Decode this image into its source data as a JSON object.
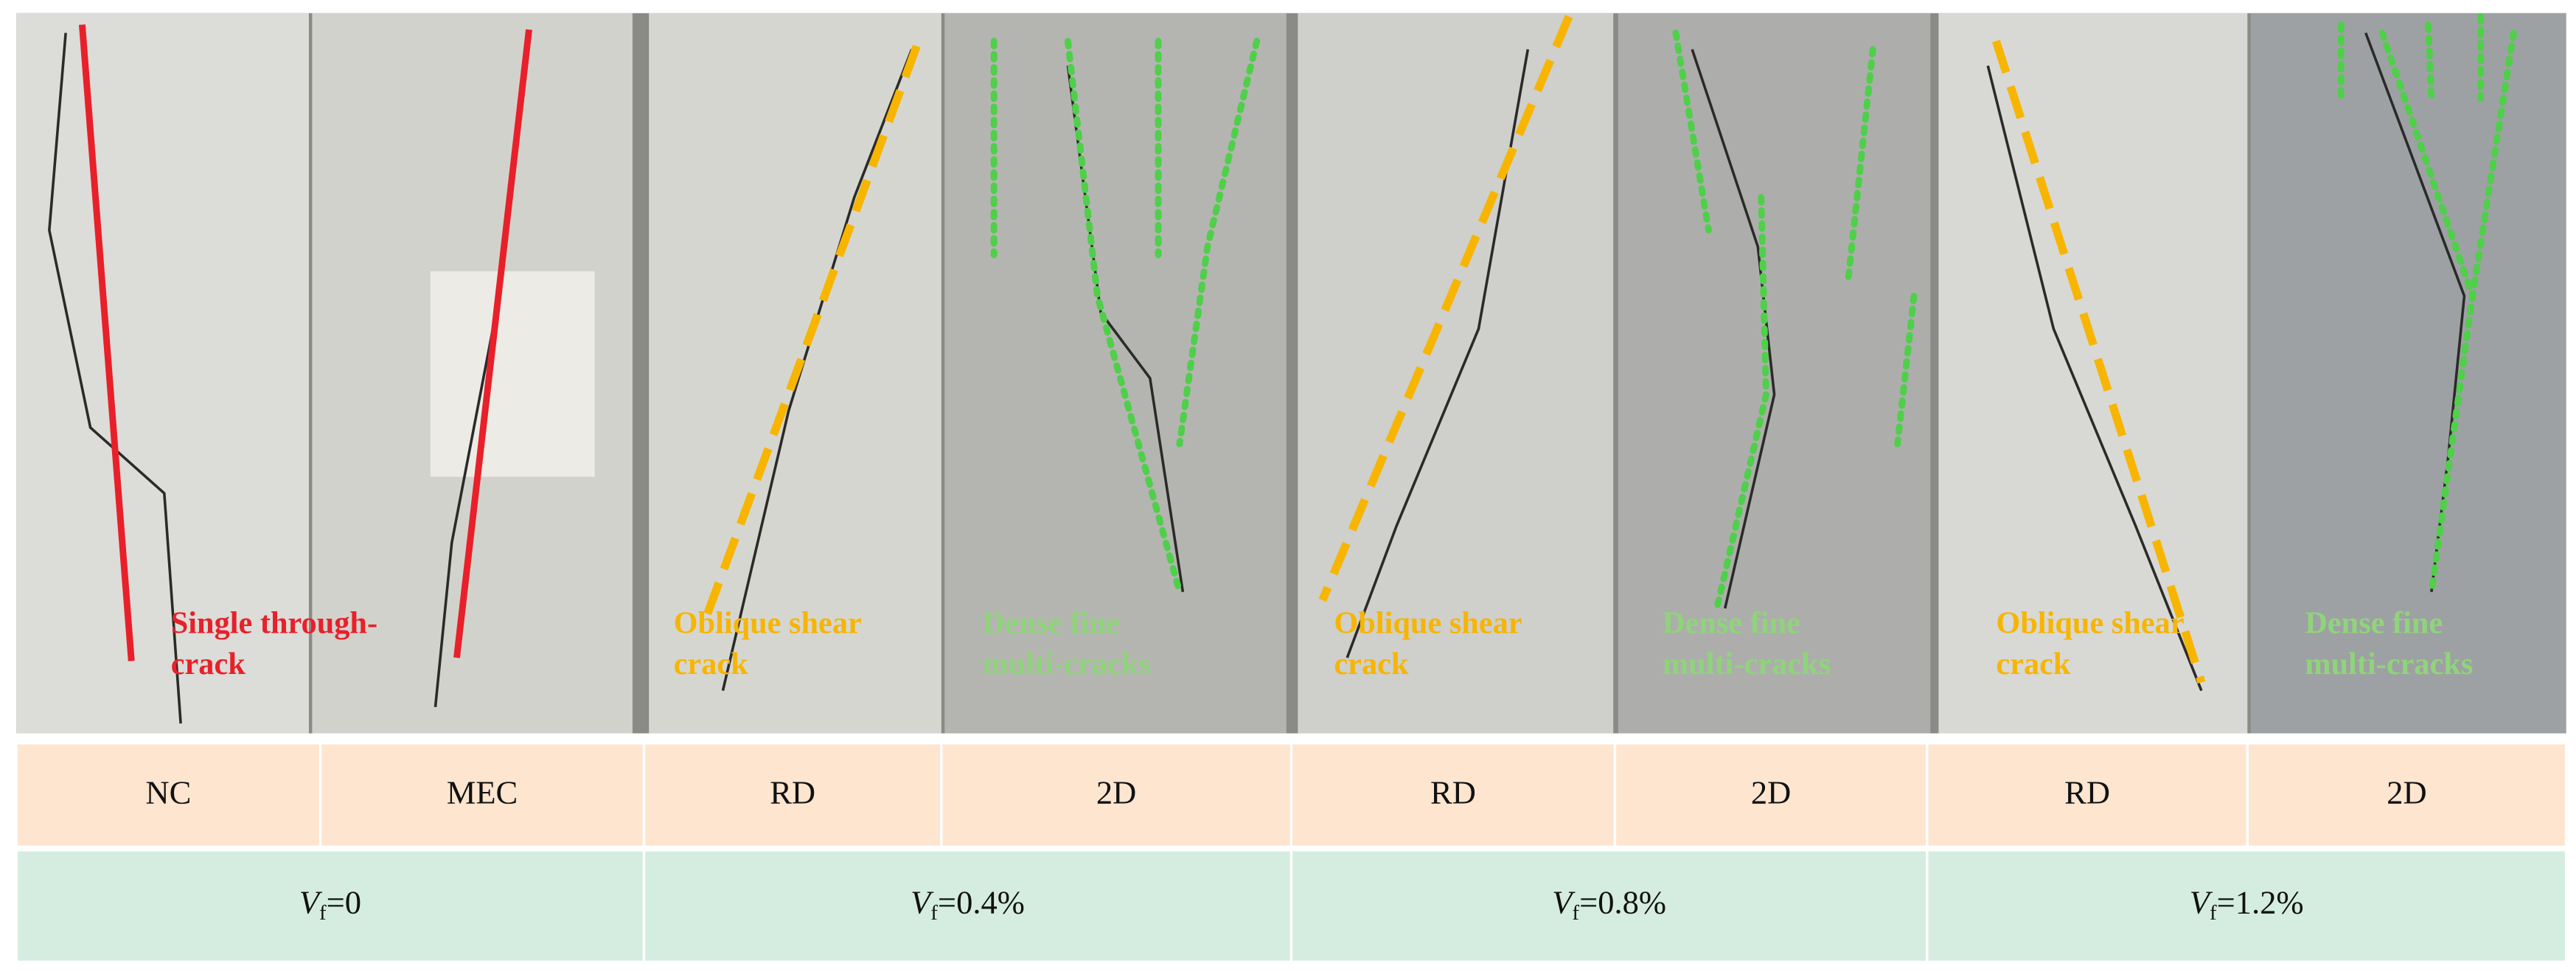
{
  "figure": {
    "annotations": [
      {
        "lines": [
          "Single through-",
          "crack"
        ]
      },
      {
        "lines": [
          "Oblique shear",
          "crack"
        ]
      },
      {
        "lines": [
          "Dense fine",
          "multi-cracks"
        ]
      },
      {
        "lines": [
          "Oblique shear",
          "crack"
        ]
      },
      {
        "lines": [
          "Dense fine",
          "multi-cracks"
        ]
      },
      {
        "lines": [
          "Oblique shear",
          "crack"
        ]
      },
      {
        "lines": [
          "Dense fine",
          "multi-cracks"
        ]
      }
    ]
  },
  "table": {
    "specimen_row": [
      "NC",
      "MEC",
      "RD",
      "2D",
      "RD",
      "2D",
      "RD",
      "2D"
    ],
    "fiber_row": [
      {
        "symbol": "V",
        "subscript": "f",
        "value": "=0"
      },
      {
        "symbol": "V",
        "subscript": "f",
        "value": "=0.4%"
      },
      {
        "symbol": "V",
        "subscript": "f",
        "value": "=0.8%"
      },
      {
        "symbol": "V",
        "subscript": "f",
        "value": "=1.2%"
      }
    ]
  }
}
